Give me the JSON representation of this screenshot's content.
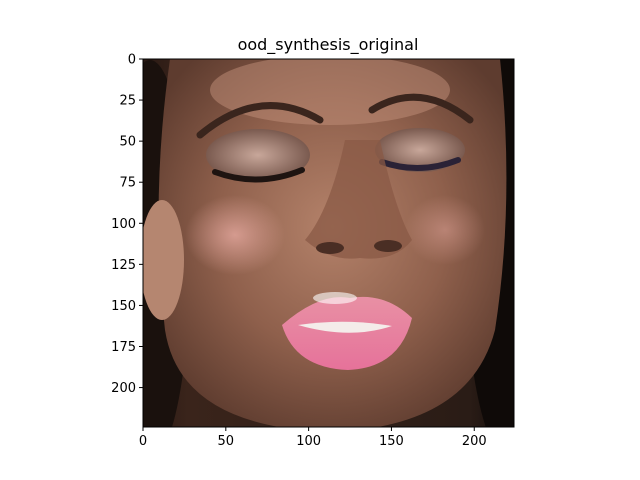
{
  "chart_data": {
    "type": "image",
    "title": "ood_synthesis_original",
    "image_description": "close-up face",
    "xlim": [
      0,
      224
    ],
    "ylim": [
      224,
      0
    ],
    "xticks": [
      0,
      50,
      100,
      150,
      200
    ],
    "yticks": [
      0,
      25,
      50,
      75,
      100,
      125,
      150,
      175,
      200
    ],
    "xlabel": "",
    "ylabel": ""
  }
}
